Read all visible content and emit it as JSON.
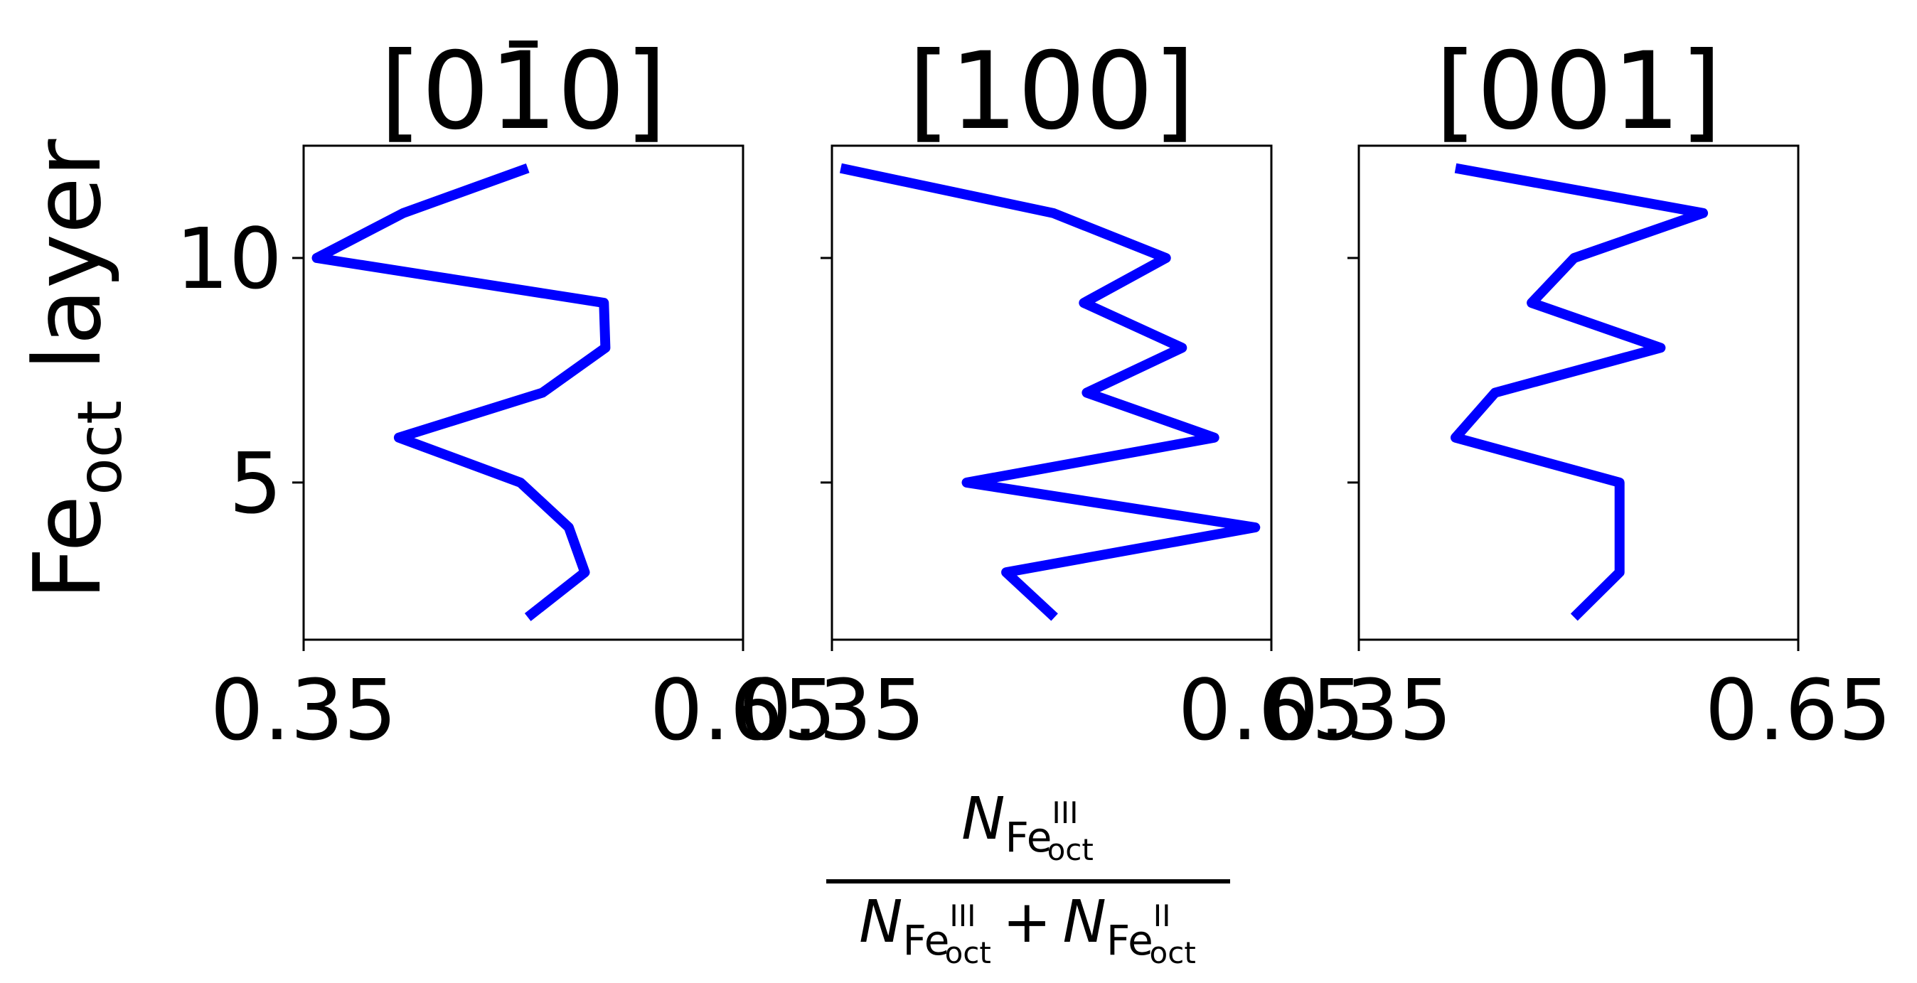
{
  "chart_data": [
    {
      "type": "line",
      "title": "[010]",
      "title_overbar_char_index": 2,
      "ylabel": "Fe",
      "ylabel_sub": "oct",
      "ylabel_rest": " layer",
      "xlim": [
        0.35,
        0.65
      ],
      "ylim": [
        1.5,
        12.5
      ],
      "xticks": [
        "0.35",
        "0.65"
      ],
      "yticks": [
        5,
        10
      ],
      "line_color": "#0000ff",
      "series": [
        {
          "x": [
            0.503,
            0.542,
            0.531,
            0.498,
            0.415,
            0.513,
            0.556,
            0.555,
            0.359,
            0.418,
            0.503
          ],
          "y": [
            2,
            3,
            4,
            5,
            6,
            7,
            8,
            9,
            10,
            11,
            12
          ]
        }
      ]
    },
    {
      "type": "line",
      "title": "[100]",
      "xlim": [
        0.35,
        0.65
      ],
      "ylim": [
        1.5,
        12.5
      ],
      "xticks": [
        "0.35",
        "0.65"
      ],
      "yticks": [
        5,
        10
      ],
      "line_color": "#0000ff",
      "series": [
        {
          "x": [
            0.502,
            0.469,
            0.639,
            0.442,
            0.611,
            0.524,
            0.589,
            0.522,
            0.578,
            0.501,
            0.356
          ],
          "y": [
            2,
            3,
            4,
            5,
            6,
            7,
            8,
            9,
            10,
            11,
            12
          ]
        }
      ]
    },
    {
      "type": "line",
      "title": "[001]",
      "xlim": [
        0.35,
        0.65
      ],
      "ylim": [
        1.5,
        12.5
      ],
      "xticks": [
        "0.35",
        "0.65"
      ],
      "yticks": [
        5,
        10
      ],
      "line_color": "#0000ff",
      "series": [
        {
          "x": [
            0.497,
            0.528,
            0.528,
            0.528,
            0.416,
            0.443,
            0.556,
            0.468,
            0.497,
            0.585,
            0.416
          ],
          "y": [
            2,
            3,
            4,
            5,
            6,
            7,
            8,
            9,
            10,
            11,
            12
          ]
        }
      ]
    }
  ],
  "shared_xlabel": {
    "numerator": "N",
    "numerator_sub": "Fe",
    "numerator_sub_sup": "III",
    "numerator_sub_sub": "oct",
    "denominator_term1": "N",
    "denominator_term1_sub": "Fe",
    "denominator_term1_sub_sup": "III",
    "denominator_term1_sub_sub": "oct",
    "operator": "+",
    "denominator_term2": "N",
    "denominator_term2_sub": "Fe",
    "denominator_term2_sub_sup": "II",
    "denominator_term2_sub_sub": "oct"
  }
}
